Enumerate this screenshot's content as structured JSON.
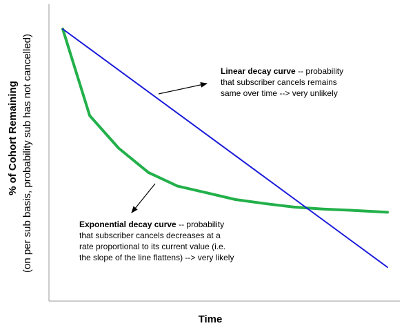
{
  "chart_data": {
    "type": "line",
    "title": "",
    "xlabel": "Time",
    "ylabel": "% of Cohort Remaining",
    "ylabel_sub": "(on per sub basis, probability sub has not cancelled)",
    "ylim": [
      0,
      100
    ],
    "xlim": [
      0,
      10
    ],
    "grid": false,
    "axes_ticks": false,
    "series": [
      {
        "key": "linear",
        "color": "#1a1adb",
        "x": [
          0,
          10
        ],
        "values": [
          100,
          12
        ]
      },
      {
        "key": "exponential",
        "color": "#22b04a",
        "x": [
          0,
          0.83,
          1.72,
          2.64,
          3.53,
          4.43,
          5.32,
          6.22,
          7.12,
          8.01,
          8.91,
          10
        ],
        "values": [
          100,
          68,
          56,
          47,
          42,
          39.5,
          37,
          35.5,
          34.2,
          33.5,
          33,
          32.3
        ]
      }
    ],
    "annotations": [
      {
        "key": "linear",
        "bold": "Linear decay curve",
        "lines": [
          " -- probability",
          "that subscriber cancels remains",
          "same over time --> very unlikely"
        ]
      },
      {
        "key": "exponential",
        "bold": "Exponential decay curve",
        "lines": [
          " -- probability",
          "that subscriber cancels decreases at a",
          "rate proportional to its current value (i.e.",
          "the slope of the line flattens) --> very likely"
        ]
      }
    ]
  }
}
